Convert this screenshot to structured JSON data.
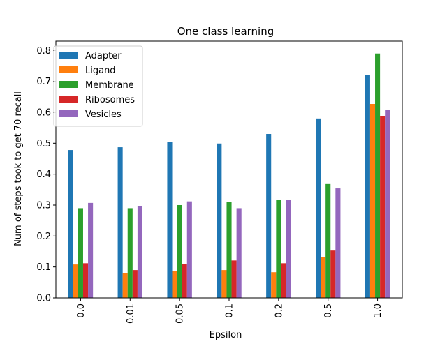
{
  "chart_data": {
    "type": "bar",
    "title": "One class learning",
    "xlabel": "Epsilon",
    "ylabel": "Num of steps took to get 70 recall",
    "categories": [
      "0.0",
      "0.01",
      "0.05",
      "0.1",
      "0.2",
      "0.5",
      "1.0"
    ],
    "ylim": [
      0,
      0.83
    ],
    "yticks": [
      "0.0",
      "0.1",
      "0.2",
      "0.3",
      "0.4",
      "0.5",
      "0.6",
      "0.7",
      "0.8"
    ],
    "grid": false,
    "legend_position": "top-left",
    "series": [
      {
        "name": "Adapter",
        "color": "#1f77b4",
        "values": [
          0.478,
          0.487,
          0.503,
          0.499,
          0.53,
          0.58,
          0.72
        ]
      },
      {
        "name": "Ligand",
        "color": "#ff7f0e",
        "values": [
          0.108,
          0.08,
          0.086,
          0.09,
          0.083,
          0.133,
          0.627
        ]
      },
      {
        "name": "Membrane",
        "color": "#2ca02c",
        "values": [
          0.29,
          0.29,
          0.3,
          0.309,
          0.316,
          0.368,
          0.79
        ]
      },
      {
        "name": "Ribosomes",
        "color": "#d62728",
        "values": [
          0.112,
          0.09,
          0.11,
          0.121,
          0.112,
          0.153,
          0.588
        ]
      },
      {
        "name": "Vesicles",
        "color": "#9467bd",
        "values": [
          0.307,
          0.297,
          0.312,
          0.29,
          0.318,
          0.354,
          0.607
        ]
      }
    ]
  }
}
